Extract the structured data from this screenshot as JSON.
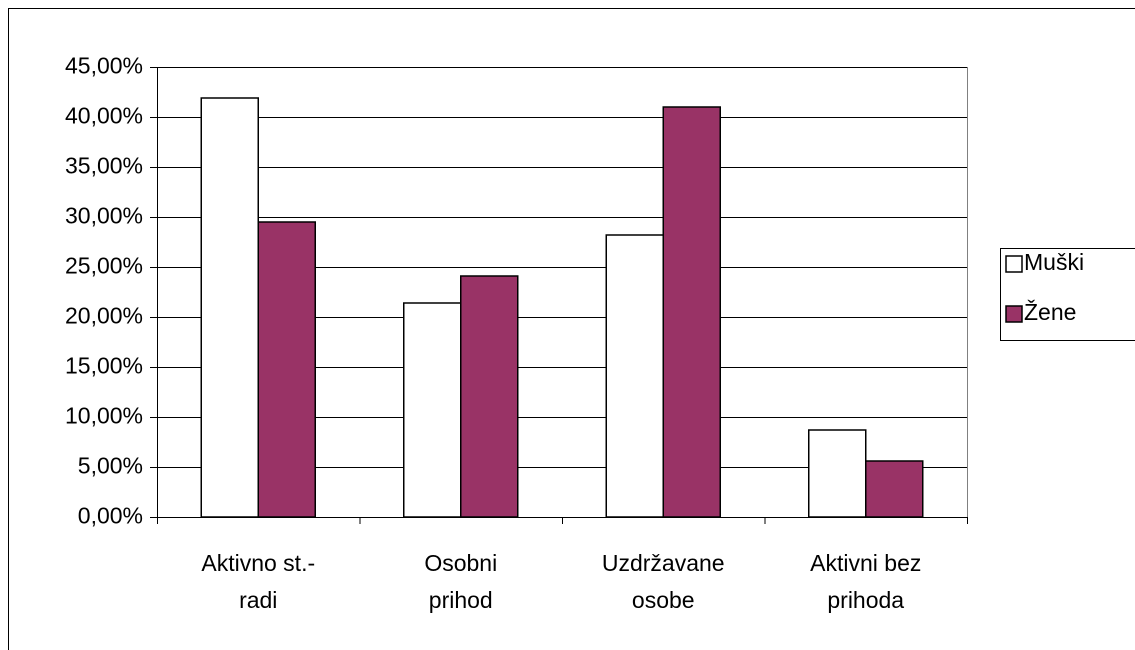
{
  "chart_data": {
    "type": "bar",
    "categories": [
      [
        "Aktivno st.-",
        "radi"
      ],
      [
        "Osobni",
        "prihod"
      ],
      [
        "Uzdržavane",
        "osobe"
      ],
      [
        "Aktivni bez",
        "prihoda"
      ]
    ],
    "series": [
      {
        "name": "Muški",
        "color": "#ffffff",
        "values": [
          41.9,
          21.4,
          28.2,
          8.7
        ]
      },
      {
        "name": "Žene",
        "color": "#993366",
        "values": [
          29.5,
          24.1,
          41.0,
          5.6
        ]
      }
    ],
    "ylim": [
      0,
      45
    ],
    "yticks": [
      {
        "value": 0,
        "label": "0,00%"
      },
      {
        "value": 5,
        "label": "5,00%"
      },
      {
        "value": 10,
        "label": "10,00%"
      },
      {
        "value": 15,
        "label": "15,00%"
      },
      {
        "value": 20,
        "label": "20,00%"
      },
      {
        "value": 25,
        "label": "25,00%"
      },
      {
        "value": 30,
        "label": "30,00%"
      },
      {
        "value": 35,
        "label": "35,00%"
      },
      {
        "value": 40,
        "label": "40,00%"
      },
      {
        "value": 45,
        "label": "45,00%"
      }
    ],
    "grid": true,
    "legend": "right"
  }
}
